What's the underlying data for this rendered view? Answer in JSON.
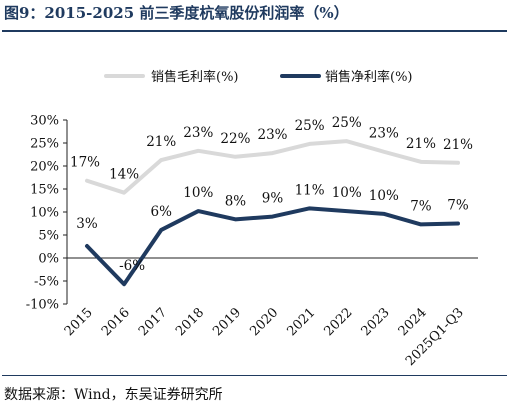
{
  "title": "图9：2015-2025 前三季度杭氧股份利润率（%）",
  "source": "数据来源：Wind，东吴证券研究所",
  "colors": {
    "gross": "#d9d9d9",
    "net": "#1f3a5f",
    "title": "#1f3a5f"
  },
  "chart_data": {
    "type": "line",
    "title": "",
    "xlabel": "",
    "ylabel": "",
    "categories": [
      "2015",
      "2016",
      "2017",
      "2018",
      "2019",
      "2020",
      "2021",
      "2022",
      "2023",
      "2024",
      "2025Q1-Q3"
    ],
    "ylim": [
      -10,
      30
    ],
    "yticks": [
      -10,
      -5,
      0,
      5,
      10,
      15,
      20,
      25,
      30
    ],
    "ytick_labels": [
      "-10%",
      "-5%",
      "0%",
      "5%",
      "10%",
      "15%",
      "20%",
      "25%",
      "30%"
    ],
    "legend_position": "top",
    "grid": false,
    "series": [
      {
        "name": "销售毛利率(%)",
        "color": "#d9d9d9",
        "values": [
          16.8,
          14.2,
          21.3,
          23.3,
          22.0,
          22.8,
          24.8,
          25.4,
          23.1,
          20.9,
          20.7
        ],
        "labels": [
          "17%",
          "14%",
          "21%",
          "23%",
          "22%",
          "23%",
          "25%",
          "25%",
          "23%",
          "21%",
          "21%"
        ]
      },
      {
        "name": "销售净利率(%)",
        "color": "#1f3a5f",
        "values": [
          2.6,
          -5.7,
          6.1,
          10.2,
          8.4,
          9.0,
          10.8,
          10.2,
          9.6,
          7.3,
          7.5
        ],
        "labels": [
          "3%",
          "-6%",
          "6%",
          "10%",
          "8%",
          "9%",
          "11%",
          "10%",
          "10%",
          "7%",
          "7%"
        ]
      }
    ]
  }
}
